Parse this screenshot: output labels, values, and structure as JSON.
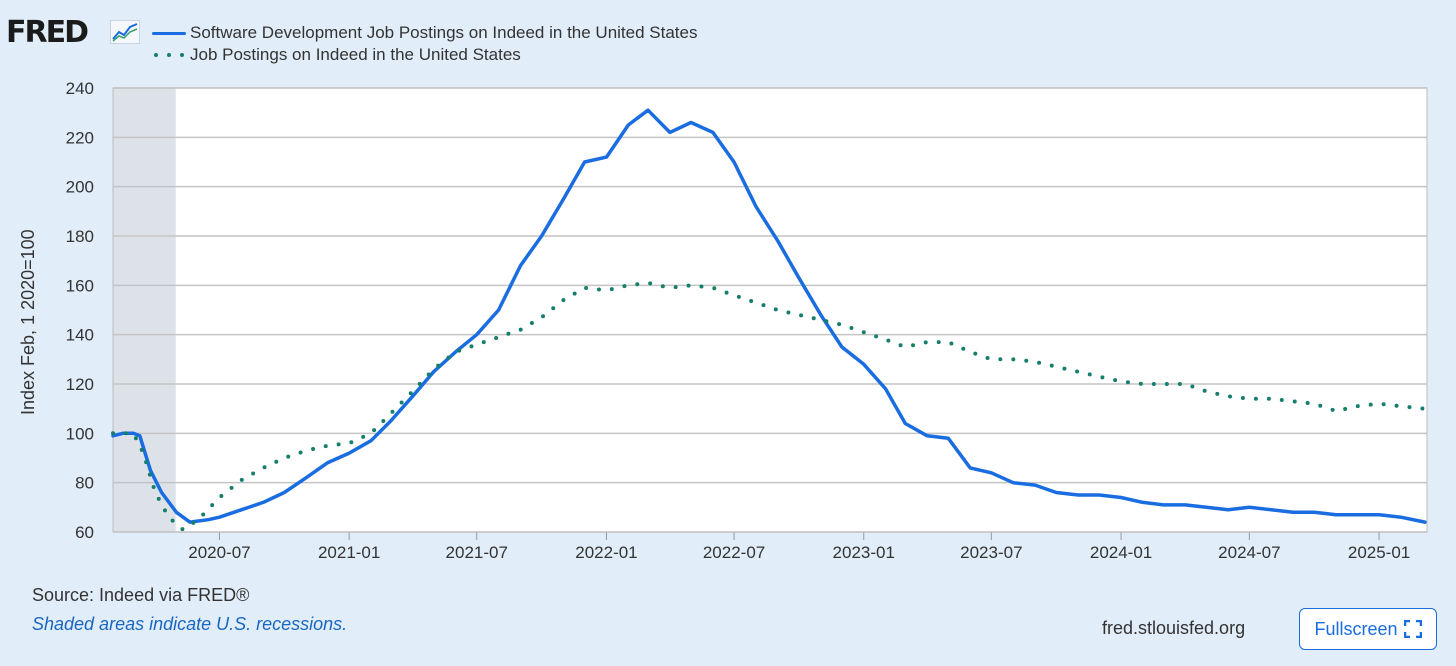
{
  "brand": {
    "logo_text": "FRED"
  },
  "legend": [
    {
      "label": "Software Development Job Postings on Indeed in the United States",
      "color": "#1a6de0",
      "style": "solid"
    },
    {
      "label": "Job Postings on Indeed in the United States",
      "color": "#167e6b",
      "style": "dotted"
    }
  ],
  "footer": {
    "source": "Source: Indeed via FRED®",
    "recession_note": "Shaded areas indicate U.S. recessions.",
    "site": "fred.stlouisfed.org",
    "fullscreen_label": "Fullscreen"
  },
  "chart_data": {
    "type": "line",
    "title": "",
    "xlabel": "",
    "ylabel": "Index Feb, 1 2020=100",
    "xlim": [
      "2020-02-01",
      "2025-03-10"
    ],
    "ylim": [
      60,
      240
    ],
    "yticks": [
      60,
      80,
      100,
      120,
      140,
      160,
      180,
      200,
      220,
      240
    ],
    "xticks": [
      "2020-07",
      "2021-01",
      "2021-07",
      "2022-01",
      "2022-07",
      "2023-01",
      "2023-07",
      "2024-01",
      "2024-07",
      "2025-01"
    ],
    "grid": true,
    "legend_position": "top-left",
    "recessions": [
      [
        "2020-02-01",
        "2020-04-30"
      ]
    ],
    "series": [
      {
        "name": "Software Development Job Postings on Indeed in the United States",
        "color": "#1a6de0",
        "style": "solid",
        "points": [
          [
            "2020-02-01",
            99
          ],
          [
            "2020-02-15",
            100
          ],
          [
            "2020-03-01",
            100
          ],
          [
            "2020-03-10",
            99
          ],
          [
            "2020-03-25",
            85
          ],
          [
            "2020-04-10",
            76
          ],
          [
            "2020-05-01",
            68
          ],
          [
            "2020-05-20",
            64
          ],
          [
            "2020-06-15",
            65
          ],
          [
            "2020-07-01",
            66
          ],
          [
            "2020-08-01",
            69
          ],
          [
            "2020-09-01",
            72
          ],
          [
            "2020-10-01",
            76
          ],
          [
            "2020-11-01",
            82
          ],
          [
            "2020-12-01",
            88
          ],
          [
            "2021-01-01",
            92
          ],
          [
            "2021-02-01",
            97
          ],
          [
            "2021-03-01",
            105
          ],
          [
            "2021-04-01",
            115
          ],
          [
            "2021-05-01",
            125
          ],
          [
            "2021-06-01",
            133
          ],
          [
            "2021-07-01",
            140
          ],
          [
            "2021-08-01",
            150
          ],
          [
            "2021-09-01",
            168
          ],
          [
            "2021-10-01",
            180
          ],
          [
            "2021-11-01",
            195
          ],
          [
            "2021-12-01",
            210
          ],
          [
            "2022-01-01",
            212
          ],
          [
            "2022-02-01",
            225
          ],
          [
            "2022-03-01",
            231
          ],
          [
            "2022-04-01",
            222
          ],
          [
            "2022-05-01",
            226
          ],
          [
            "2022-06-01",
            222
          ],
          [
            "2022-07-01",
            210
          ],
          [
            "2022-08-01",
            192
          ],
          [
            "2022-09-01",
            178
          ],
          [
            "2022-10-01",
            163
          ],
          [
            "2022-11-01",
            148
          ],
          [
            "2022-12-01",
            135
          ],
          [
            "2023-01-01",
            128
          ],
          [
            "2023-02-01",
            118
          ],
          [
            "2023-03-01",
            104
          ],
          [
            "2023-04-01",
            99
          ],
          [
            "2023-05-01",
            98
          ],
          [
            "2023-06-01",
            86
          ],
          [
            "2023-07-01",
            84
          ],
          [
            "2023-08-01",
            80
          ],
          [
            "2023-09-01",
            79
          ],
          [
            "2023-10-01",
            76
          ],
          [
            "2023-11-01",
            75
          ],
          [
            "2023-12-01",
            75
          ],
          [
            "2024-01-01",
            74
          ],
          [
            "2024-02-01",
            72
          ],
          [
            "2024-03-01",
            71
          ],
          [
            "2024-04-01",
            71
          ],
          [
            "2024-05-01",
            70
          ],
          [
            "2024-06-01",
            69
          ],
          [
            "2024-07-01",
            70
          ],
          [
            "2024-08-01",
            69
          ],
          [
            "2024-09-01",
            68
          ],
          [
            "2024-10-01",
            68
          ],
          [
            "2024-11-01",
            67
          ],
          [
            "2024-12-01",
            67
          ],
          [
            "2025-01-01",
            67
          ],
          [
            "2025-02-01",
            66
          ],
          [
            "2025-03-07",
            64
          ]
        ]
      },
      {
        "name": "Job Postings on Indeed in the United States",
        "color": "#167e6b",
        "style": "dotted",
        "points": [
          [
            "2020-02-01",
            100
          ],
          [
            "2020-03-01",
            100
          ],
          [
            "2020-03-15",
            92
          ],
          [
            "2020-04-01",
            76
          ],
          [
            "2020-04-20",
            66
          ],
          [
            "2020-05-10",
            61
          ],
          [
            "2020-06-01",
            65
          ],
          [
            "2020-07-01",
            74
          ],
          [
            "2020-08-01",
            81
          ],
          [
            "2020-09-01",
            86
          ],
          [
            "2020-10-01",
            90
          ],
          [
            "2020-11-01",
            93
          ],
          [
            "2020-12-01",
            95
          ],
          [
            "2021-01-01",
            96
          ],
          [
            "2021-02-01",
            100
          ],
          [
            "2021-03-01",
            108
          ],
          [
            "2021-04-01",
            117
          ],
          [
            "2021-05-01",
            126
          ],
          [
            "2021-06-01",
            133
          ],
          [
            "2021-07-01",
            136
          ],
          [
            "2021-08-01",
            139
          ],
          [
            "2021-09-01",
            142
          ],
          [
            "2021-10-01",
            147
          ],
          [
            "2021-11-01",
            154
          ],
          [
            "2021-12-01",
            159
          ],
          [
            "2022-01-01",
            158
          ],
          [
            "2022-02-01",
            160
          ],
          [
            "2022-03-01",
            161
          ],
          [
            "2022-04-01",
            159
          ],
          [
            "2022-05-01",
            160
          ],
          [
            "2022-06-01",
            159
          ],
          [
            "2022-07-01",
            156
          ],
          [
            "2022-08-01",
            153
          ],
          [
            "2022-09-01",
            150
          ],
          [
            "2022-10-01",
            148
          ],
          [
            "2022-11-01",
            146
          ],
          [
            "2022-12-01",
            144
          ],
          [
            "2023-01-01",
            141
          ],
          [
            "2023-02-01",
            138
          ],
          [
            "2023-03-01",
            135
          ],
          [
            "2023-04-01",
            137
          ],
          [
            "2023-05-01",
            137
          ],
          [
            "2023-06-01",
            133
          ],
          [
            "2023-07-01",
            130
          ],
          [
            "2023-08-01",
            130
          ],
          [
            "2023-09-01",
            129
          ],
          [
            "2023-10-01",
            127
          ],
          [
            "2023-11-01",
            125
          ],
          [
            "2023-12-01",
            123
          ],
          [
            "2024-01-01",
            121
          ],
          [
            "2024-02-01",
            120
          ],
          [
            "2024-03-01",
            120
          ],
          [
            "2024-04-01",
            120
          ],
          [
            "2024-05-01",
            117
          ],
          [
            "2024-06-01",
            115
          ],
          [
            "2024-07-01",
            114
          ],
          [
            "2024-08-01",
            114
          ],
          [
            "2024-09-01",
            113
          ],
          [
            "2024-10-01",
            112
          ],
          [
            "2024-11-01",
            109
          ],
          [
            "2024-12-01",
            111
          ],
          [
            "2025-01-01",
            112
          ],
          [
            "2025-02-01",
            111
          ],
          [
            "2025-03-07",
            110
          ]
        ]
      }
    ]
  }
}
